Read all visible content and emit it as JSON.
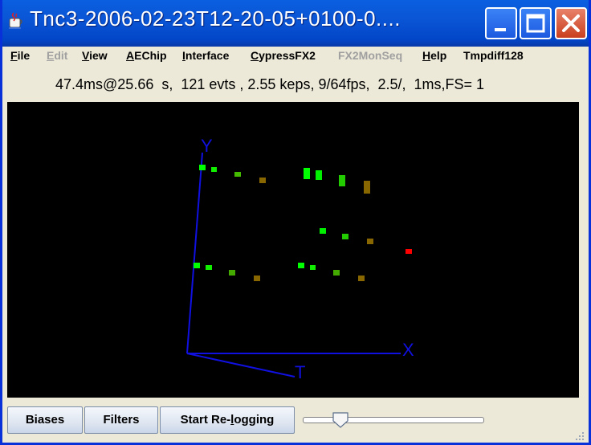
{
  "window": {
    "title": "Tnc3-2006-02-23T12-20-05+0100-0....",
    "colors": {
      "titlebar": "#0a56d6",
      "background": "#ece9d8",
      "viewer": "#000000",
      "axis": "#1010e0"
    }
  },
  "menubar": {
    "items": [
      {
        "label": "File",
        "underline": "F",
        "enabled": true
      },
      {
        "label": "Edit",
        "underline": "E",
        "enabled": false
      },
      {
        "label": "View",
        "underline": "V",
        "enabled": true
      },
      {
        "label": "AEChip",
        "underline": "A",
        "enabled": true
      },
      {
        "label": "Interface",
        "underline": "I",
        "enabled": true
      },
      {
        "label": "CypressFX2",
        "underline": "C",
        "enabled": true
      },
      {
        "label": "FX2MonSeq",
        "underline": "",
        "enabled": false
      },
      {
        "label": "Help",
        "underline": "H",
        "enabled": true
      },
      {
        "label": "Tmpdiff128",
        "underline": "",
        "enabled": true
      }
    ]
  },
  "status": {
    "text": "47.4ms@25.66  s,  121 evts , 2.55 keps, 9/64fps,  2.5/,  1ms,FS= 1"
  },
  "viewer": {
    "axes": {
      "x_label": "X",
      "y_label": "Y",
      "t_label": "T"
    },
    "events": [
      {
        "color": "#00ff00"
      },
      {
        "color": "#11ee00"
      },
      {
        "color": "#44bb00"
      },
      {
        "color": "#886600"
      },
      {
        "color": "#00ff00"
      },
      {
        "color": "#00ee00"
      },
      {
        "color": "#22cc00"
      },
      {
        "color": "#886600"
      },
      {
        "color": "#00ee00"
      },
      {
        "color": "#22cc00"
      },
      {
        "color": "#886600"
      },
      {
        "color": "#ff0000"
      },
      {
        "color": "#00ff00"
      },
      {
        "color": "#11ee00"
      },
      {
        "color": "#44aa00"
      },
      {
        "color": "#886600"
      },
      {
        "color": "#00ff00"
      },
      {
        "color": "#11ee00"
      },
      {
        "color": "#44aa00"
      },
      {
        "color": "#886600"
      }
    ]
  },
  "controls": {
    "biases_label": "Biases",
    "filters_label": "Filters",
    "logging_label": "Start Re-logging",
    "logging_underline": "l",
    "slider_fraction": 0.21
  }
}
